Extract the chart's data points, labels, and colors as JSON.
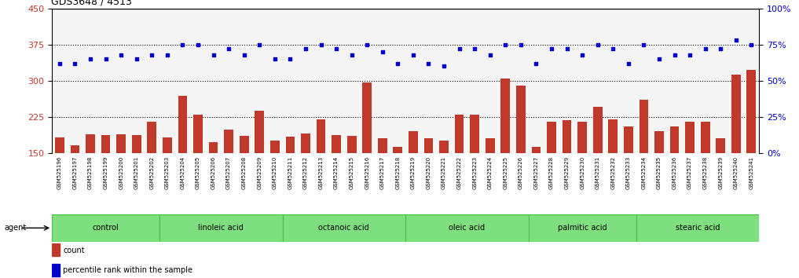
{
  "title": "GDS3648 / 4513",
  "samples": [
    "GSM525196",
    "GSM525197",
    "GSM525198",
    "GSM525199",
    "GSM525200",
    "GSM525201",
    "GSM525202",
    "GSM525203",
    "GSM525204",
    "GSM525205",
    "GSM525206",
    "GSM525207",
    "GSM525208",
    "GSM525209",
    "GSM525210",
    "GSM525211",
    "GSM525212",
    "GSM525213",
    "GSM525214",
    "GSM525215",
    "GSM525216",
    "GSM525217",
    "GSM525218",
    "GSM525219",
    "GSM525220",
    "GSM525221",
    "GSM525222",
    "GSM525223",
    "GSM525224",
    "GSM525225",
    "GSM525226",
    "GSM525227",
    "GSM525228",
    "GSM525229",
    "GSM525230",
    "GSM525231",
    "GSM525232",
    "GSM525233",
    "GSM525234",
    "GSM525235",
    "GSM525236",
    "GSM525237",
    "GSM525238",
    "GSM525239",
    "GSM525240",
    "GSM525241"
  ],
  "counts": [
    182,
    165,
    188,
    187,
    188,
    187,
    215,
    182,
    268,
    230,
    173,
    198,
    185,
    238,
    175,
    183,
    190,
    220,
    187,
    185,
    297,
    180,
    163,
    195,
    180,
    175,
    230,
    230,
    180,
    305,
    290,
    163,
    215,
    218,
    215,
    245,
    220,
    205,
    260,
    195,
    205,
    215,
    215,
    180,
    313,
    322
  ],
  "percentile_vals": [
    62,
    62,
    65,
    65,
    68,
    65,
    68,
    68,
    75,
    75,
    68,
    72,
    68,
    75,
    65,
    65,
    72,
    75,
    72,
    68,
    75,
    70,
    62,
    68,
    62,
    60,
    72,
    72,
    68,
    75,
    75,
    62,
    72,
    72,
    68,
    75,
    72,
    62,
    75,
    65,
    68,
    68,
    72,
    72,
    78,
    75
  ],
  "groups": [
    {
      "label": "control",
      "start": 0,
      "end": 7
    },
    {
      "label": "linoleic acid",
      "start": 7,
      "end": 15
    },
    {
      "label": "octanoic acid",
      "start": 15,
      "end": 23
    },
    {
      "label": "oleic acid",
      "start": 23,
      "end": 31
    },
    {
      "label": "palmitic acid",
      "start": 31,
      "end": 38
    },
    {
      "label": "stearic acid",
      "start": 38,
      "end": 46
    }
  ],
  "bar_color": "#c0392b",
  "dot_color": "#0000cc",
  "plot_bg_color": "#f5f5f5",
  "xtick_bg_color": "#d4d4d4",
  "group_bg_color": "#7ddf7d",
  "group_border_color": "#4cbe4c",
  "ylim_left": [
    150,
    450
  ],
  "ylim_right": [
    0,
    100
  ],
  "yticks_left": [
    150,
    225,
    300,
    375,
    450
  ],
  "yticks_right": [
    0,
    25,
    50,
    75,
    100
  ],
  "hlines": [
    225,
    300,
    375
  ],
  "legend_count_label": "count",
  "legend_pct_label": "percentile rank within the sample"
}
